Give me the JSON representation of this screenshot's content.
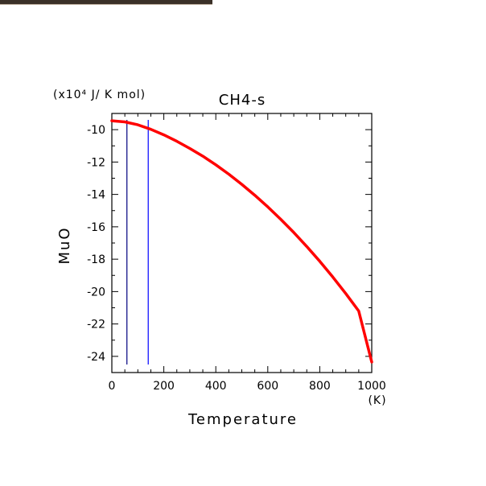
{
  "chart_data": {
    "type": "line",
    "title": "CH4-s",
    "unit_label": "(x10⁴ J/ K mol)",
    "xlabel": "Temperature",
    "xunit": "(K)",
    "ylabel": "MuO",
    "xlim": [
      0,
      1000
    ],
    "ylim": [
      -25,
      -9
    ],
    "x_ticks": [
      0,
      200,
      400,
      600,
      800,
      1000
    ],
    "x_tick_labels": [
      "0",
      "200",
      "400",
      "600",
      "800",
      "1000"
    ],
    "y_ticks": [
      -10,
      -12,
      -14,
      -16,
      -18,
      -20,
      -22,
      -24
    ],
    "y_tick_labels": [
      "-10",
      "-12",
      "-14",
      "-16",
      "-18",
      "-20",
      "-22",
      "-24"
    ],
    "grid": false,
    "series": [
      {
        "color": "#ff0000",
        "x": [
          0,
          50,
          100,
          150,
          200,
          250,
          300,
          350,
          400,
          450,
          500,
          550,
          600,
          650,
          700,
          750,
          800,
          850,
          900,
          950,
          1000
        ],
        "y": [
          -9.45,
          -9.52,
          -9.7,
          -9.98,
          -10.32,
          -10.72,
          -11.16,
          -11.64,
          -12.17,
          -12.75,
          -13.38,
          -14.05,
          -14.77,
          -15.54,
          -16.35,
          -17.22,
          -18.13,
          -19.1,
          -20.12,
          -21.2,
          -24.35
        ]
      }
    ],
    "vertical_lines": [
      {
        "x": 58,
        "color": "#000080"
      },
      {
        "x": 140,
        "color": "#0000ff"
      }
    ]
  }
}
